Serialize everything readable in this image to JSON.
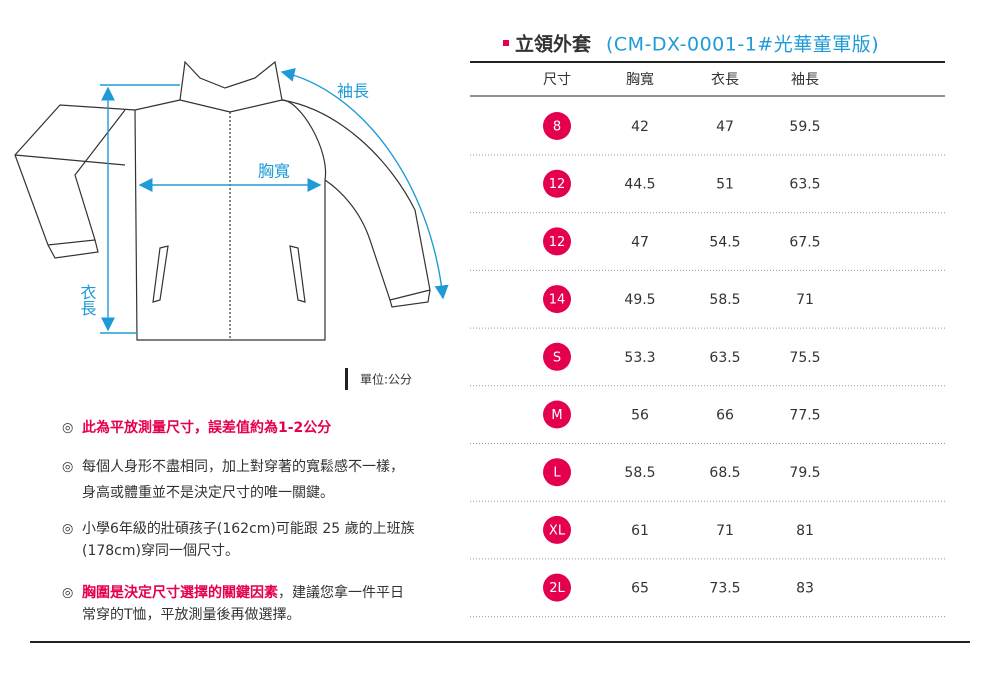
{
  "header": {
    "title": "立領外套",
    "code": "(CM-DX-0001-1#光華童軍版)"
  },
  "diagram": {
    "sleeve_label": "袖長",
    "chest_label": "胸寬",
    "length_label": "衣長",
    "unit": "單位:公分"
  },
  "table": {
    "columns": [
      "尺寸",
      "胸寬",
      "衣長",
      "袖長"
    ],
    "rows": [
      [
        "8",
        "42",
        "47",
        "59.5"
      ],
      [
        "12",
        "44.5",
        "51",
        "63.5"
      ],
      [
        "12",
        "47",
        "54.5",
        "67.5"
      ],
      [
        "14",
        "49.5",
        "58.5",
        "71"
      ],
      [
        "S",
        "53.3",
        "63.5",
        "75.5"
      ],
      [
        "M",
        "56",
        "66",
        "77.5"
      ],
      [
        "L",
        "58.5",
        "68.5",
        "79.5"
      ],
      [
        "XL",
        "61",
        "71",
        "81"
      ],
      [
        "2L",
        "65",
        "73.5",
        "83"
      ]
    ]
  },
  "notes": {
    "bullet": "◎",
    "items": [
      {
        "lines": [
          [
            {
              "text": "此為平放測量尺寸，誤差值約為1-2公分",
              "color": "#e5004f"
            }
          ]
        ]
      },
      {
        "lines": [
          [
            {
              "text": "每個人身形不盡相同，加上對穿著的寬鬆感不一樣，"
            }
          ],
          [
            {
              "text": "身高或體重並不是決定尺寸的唯一關鍵。"
            }
          ]
        ]
      },
      {
        "lines": [
          [
            {
              "text": "小學6年級的壯碩孩子(162cm)可能跟 25 歲的上班族"
            }
          ],
          [
            {
              "text": "(178cm)穿同一個尺寸。"
            }
          ]
        ]
      },
      {
        "lines": [
          [
            {
              "text": "胸圍是決定尺寸選擇的關鍵因素",
              "color": "#e5004f"
            },
            {
              "text": "，建議您拿一件平日"
            }
          ],
          [
            {
              "text": "常穿的T恤，平放測量後再做選擇。"
            }
          ]
        ]
      }
    ]
  }
}
